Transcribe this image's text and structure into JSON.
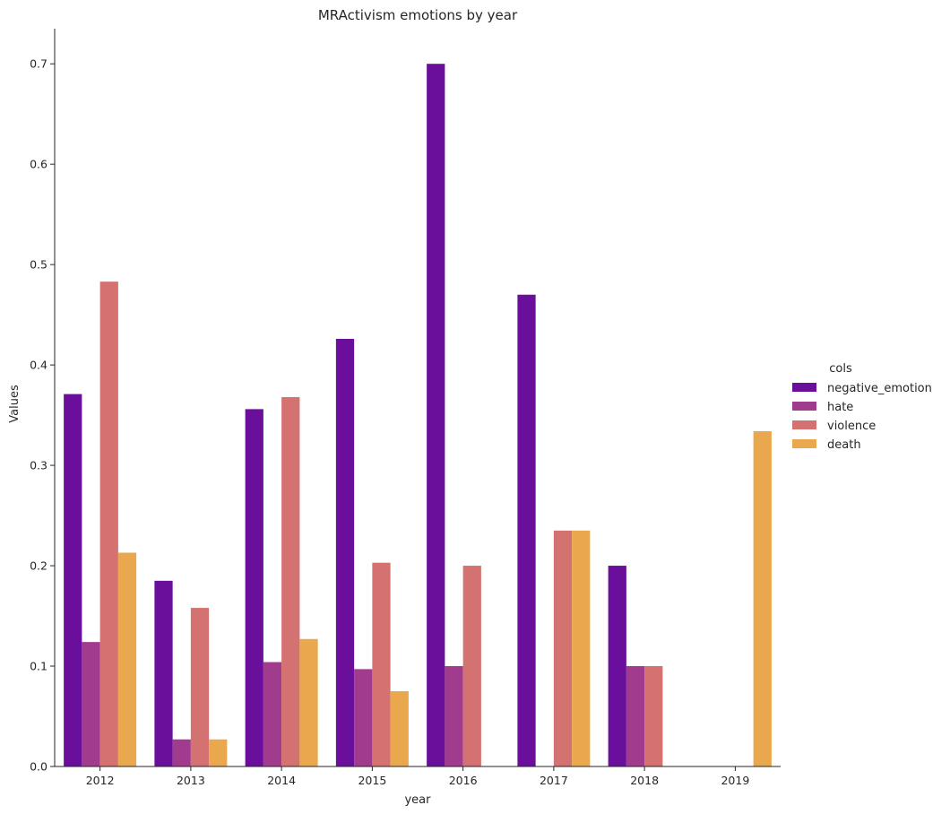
{
  "chart_data": {
    "type": "bar",
    "title": "MRActivism emotions by year",
    "xlabel": "year",
    "ylabel": "Values",
    "ylim": [
      0,
      0.735
    ],
    "yticks": [
      "0.0",
      "0.1",
      "0.2",
      "0.3",
      "0.4",
      "0.5",
      "0.6",
      "0.7"
    ],
    "categories": [
      "2012",
      "2013",
      "2014",
      "2015",
      "2016",
      "2017",
      "2018",
      "2019"
    ],
    "legend": {
      "title": "cols",
      "placement": "right"
    },
    "series": [
      {
        "name": "negative_emotion",
        "color": "#6a0f9c",
        "values": [
          0.371,
          0.185,
          0.356,
          0.426,
          0.7,
          0.47,
          0.2,
          0.0
        ]
      },
      {
        "name": "hate",
        "color": "#a13b8d",
        "values": [
          0.124,
          0.027,
          0.104,
          0.097,
          0.1,
          0.0,
          0.1,
          0.0
        ]
      },
      {
        "name": "violence",
        "color": "#d47171",
        "values": [
          0.483,
          0.158,
          0.368,
          0.203,
          0.2,
          0.235,
          0.1,
          0.0
        ]
      },
      {
        "name": "death",
        "color": "#e9a84d",
        "values": [
          0.213,
          0.027,
          0.127,
          0.075,
          0.0,
          0.235,
          0.0,
          0.334
        ]
      }
    ],
    "grid": false
  }
}
